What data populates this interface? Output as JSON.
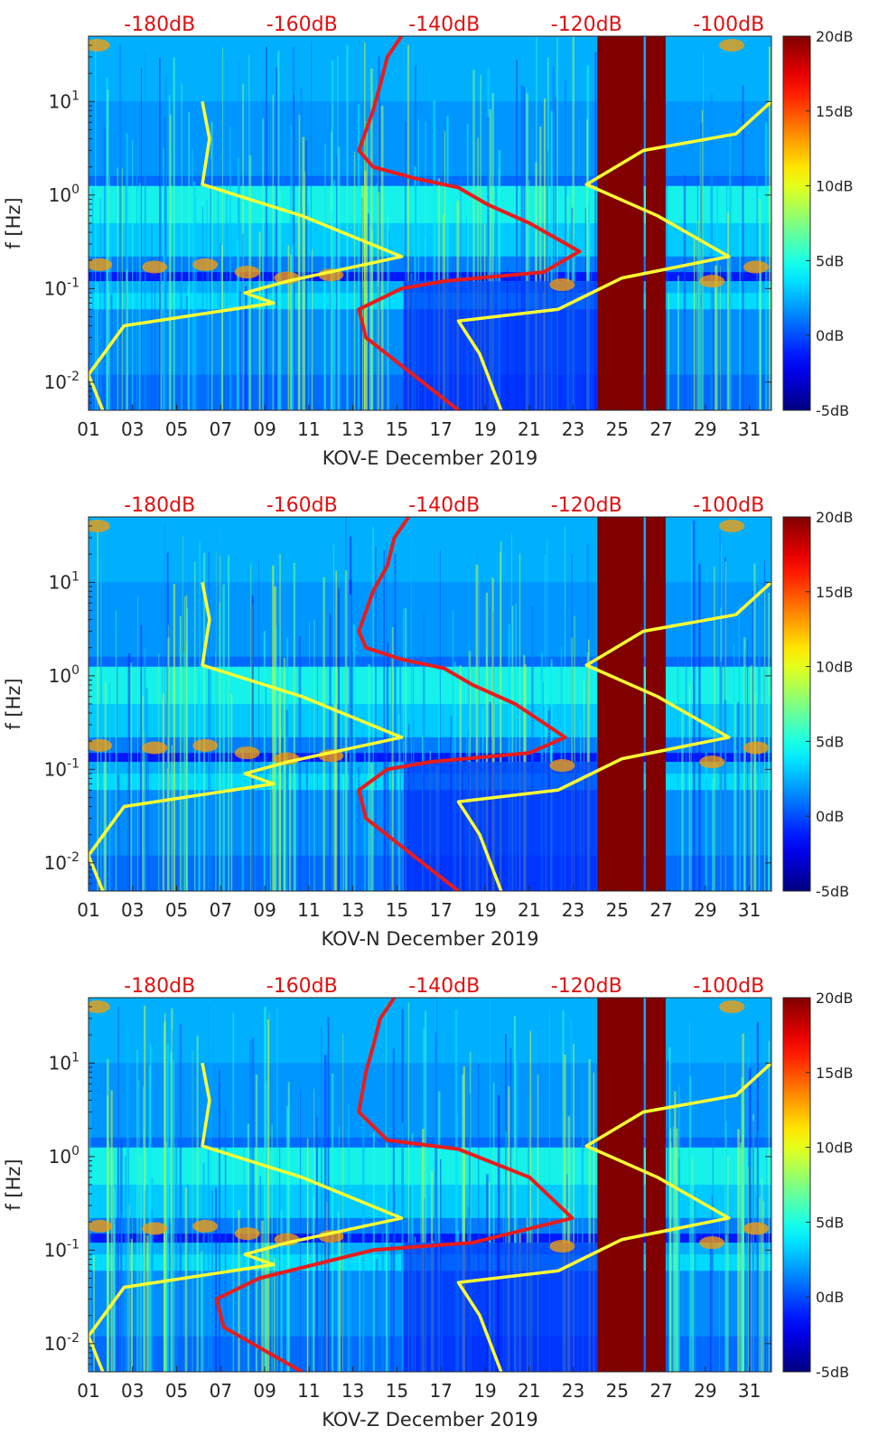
{
  "chart_data": [
    {
      "type": "heatmap",
      "station": "KOV-E",
      "xlabel": "KOV-E December 2019",
      "ylabel": "f [Hz]",
      "x_ticks": [
        "01",
        "03",
        "05",
        "07",
        "09",
        "11",
        "13",
        "15",
        "17",
        "19",
        "21",
        "23",
        "25",
        "27",
        "29",
        "31"
      ],
      "y_ticks": [
        "10-2",
        "10-1",
        "100",
        "101"
      ],
      "y_scale": "log",
      "ylim_hz": [
        0.005,
        50
      ],
      "xlim_day": [
        1,
        32
      ],
      "top_axis_ticks": [
        "-180dB",
        "-160dB",
        "-140dB",
        "-120dB",
        "-100dB"
      ],
      "top_axis_range_db": [
        -190,
        -94
      ],
      "colorbar_ticks": [
        "20dB",
        "15dB",
        "10dB",
        "5dB",
        "0dB",
        "-5dB"
      ],
      "colorbar_range_db": [
        -5,
        20
      ],
      "gap_days": [
        [
          24.1,
          26.2
        ],
        [
          26.3,
          27.2
        ]
      ],
      "curves": [
        {
          "color": "#ffff33",
          "points_db_hz": [
            [
              -174,
              10
            ],
            [
              -173,
              4
            ],
            [
              -174,
              1.3
            ],
            [
              -160,
              0.6
            ],
            [
              -146,
              0.22
            ],
            [
              -162,
              0.12
            ],
            [
              -168,
              0.09
            ],
            [
              -164,
              0.07
            ],
            [
              -185,
              0.04
            ],
            [
              -190,
              0.012
            ],
            [
              -188,
              0.005
            ]
          ]
        },
        {
          "color": "#ffff33",
          "points_db_hz": [
            [
              -94,
              10
            ],
            [
              -99,
              4.5
            ],
            [
              -112,
              3
            ],
            [
              -120,
              1.3
            ],
            [
              -110,
              0.6
            ],
            [
              -100,
              0.22
            ],
            [
              -115,
              0.13
            ],
            [
              -124,
              0.06
            ],
            [
              -138,
              0.045
            ],
            [
              -135,
              0.02
            ],
            [
              -132,
              0.005
            ]
          ]
        },
        {
          "color": "#e81c1c",
          "points_db_hz": [
            [
              -146,
              50
            ],
            [
              -148,
              30
            ],
            [
              -149,
              15
            ],
            [
              -150,
              8
            ],
            [
              -152,
              3
            ],
            [
              -150,
              2
            ],
            [
              -144,
              1.5
            ],
            [
              -138,
              1.2
            ],
            [
              -134,
              0.8
            ],
            [
              -128,
              0.5
            ],
            [
              -121,
              0.25
            ],
            [
              -126,
              0.15
            ],
            [
              -140,
              0.12
            ],
            [
              -146,
              0.1
            ],
            [
              -152,
              0.06
            ],
            [
              -151,
              0.03
            ],
            [
              -146,
              0.015
            ],
            [
              -138,
              0.005
            ]
          ]
        }
      ]
    },
    {
      "type": "heatmap",
      "station": "KOV-N",
      "xlabel": "KOV-N December 2019",
      "ylabel": "f [Hz]",
      "x_ticks": [
        "01",
        "03",
        "05",
        "07",
        "09",
        "11",
        "13",
        "15",
        "17",
        "19",
        "21",
        "23",
        "25",
        "27",
        "29",
        "31"
      ],
      "y_ticks": [
        "10-2",
        "10-1",
        "100",
        "101"
      ],
      "y_scale": "log",
      "ylim_hz": [
        0.005,
        50
      ],
      "xlim_day": [
        1,
        32
      ],
      "top_axis_ticks": [
        "-180dB",
        "-160dB",
        "-140dB",
        "-120dB",
        "-100dB"
      ],
      "top_axis_range_db": [
        -190,
        -94
      ],
      "colorbar_ticks": [
        "20dB",
        "15dB",
        "10dB",
        "5dB",
        "0dB",
        "-5dB"
      ],
      "colorbar_range_db": [
        -5,
        20
      ],
      "gap_days": [
        [
          24.1,
          26.2
        ],
        [
          26.3,
          27.2
        ]
      ],
      "curves": [
        {
          "color": "#ffff33",
          "points_db_hz": [
            [
              -174,
              10
            ],
            [
              -173,
              4
            ],
            [
              -174,
              1.3
            ],
            [
              -160,
              0.6
            ],
            [
              -146,
              0.22
            ],
            [
              -162,
              0.12
            ],
            [
              -168,
              0.09
            ],
            [
              -164,
              0.07
            ],
            [
              -185,
              0.04
            ],
            [
              -190,
              0.012
            ],
            [
              -188,
              0.005
            ]
          ]
        },
        {
          "color": "#ffff33",
          "points_db_hz": [
            [
              -94,
              10
            ],
            [
              -99,
              4.5
            ],
            [
              -112,
              3
            ],
            [
              -120,
              1.3
            ],
            [
              -110,
              0.6
            ],
            [
              -100,
              0.22
            ],
            [
              -115,
              0.13
            ],
            [
              -124,
              0.06
            ],
            [
              -138,
              0.045
            ],
            [
              -135,
              0.02
            ],
            [
              -132,
              0.005
            ]
          ]
        },
        {
          "color": "#e81c1c",
          "points_db_hz": [
            [
              -145,
              50
            ],
            [
              -147,
              30
            ],
            [
              -148,
              15
            ],
            [
              -150,
              8
            ],
            [
              -152,
              3
            ],
            [
              -151,
              2
            ],
            [
              -146,
              1.5
            ],
            [
              -140,
              1.2
            ],
            [
              -136,
              0.8
            ],
            [
              -130,
              0.5
            ],
            [
              -123,
              0.22
            ],
            [
              -128,
              0.15
            ],
            [
              -142,
              0.12
            ],
            [
              -148,
              0.1
            ],
            [
              -152,
              0.06
            ],
            [
              -151,
              0.03
            ],
            [
              -146,
              0.015
            ],
            [
              -138,
              0.005
            ]
          ]
        }
      ]
    },
    {
      "type": "heatmap",
      "station": "KOV-Z",
      "xlabel": "KOV-Z December 2019",
      "ylabel": "f [Hz]",
      "x_ticks": [
        "01",
        "03",
        "05",
        "07",
        "09",
        "11",
        "13",
        "15",
        "17",
        "19",
        "21",
        "23",
        "25",
        "27",
        "29",
        "31"
      ],
      "y_ticks": [
        "10-2",
        "10-1",
        "100",
        "101"
      ],
      "y_scale": "log",
      "ylim_hz": [
        0.005,
        50
      ],
      "xlim_day": [
        1,
        32
      ],
      "top_axis_ticks": [
        "-180dB",
        "-160dB",
        "-140dB",
        "-120dB",
        "-100dB"
      ],
      "top_axis_range_db": [
        -190,
        -94
      ],
      "colorbar_ticks": [
        "20dB",
        "15dB",
        "10dB",
        "5dB",
        "0dB",
        "-5dB"
      ],
      "colorbar_range_db": [
        -5,
        20
      ],
      "gap_days": [
        [
          24.1,
          26.2
        ],
        [
          26.3,
          27.2
        ]
      ],
      "curves": [
        {
          "color": "#ffff33",
          "points_db_hz": [
            [
              -174,
              10
            ],
            [
              -173,
              4
            ],
            [
              -174,
              1.3
            ],
            [
              -160,
              0.6
            ],
            [
              -146,
              0.22
            ],
            [
              -162,
              0.12
            ],
            [
              -168,
              0.09
            ],
            [
              -164,
              0.07
            ],
            [
              -185,
              0.04
            ],
            [
              -190,
              0.012
            ],
            [
              -188,
              0.005
            ]
          ]
        },
        {
          "color": "#ffff33",
          "points_db_hz": [
            [
              -94,
              10
            ],
            [
              -99,
              4.5
            ],
            [
              -112,
              3
            ],
            [
              -120,
              1.3
            ],
            [
              -110,
              0.6
            ],
            [
              -100,
              0.22
            ],
            [
              -115,
              0.13
            ],
            [
              -124,
              0.06
            ],
            [
              -138,
              0.045
            ],
            [
              -135,
              0.02
            ],
            [
              -132,
              0.005
            ]
          ]
        },
        {
          "color": "#e81c1c",
          "points_db_hz": [
            [
              -147,
              50
            ],
            [
              -149,
              30
            ],
            [
              -150,
              15
            ],
            [
              -151,
              8
            ],
            [
              -152,
              3
            ],
            [
              -148,
              1.5
            ],
            [
              -138,
              1.2
            ],
            [
              -128,
              0.6
            ],
            [
              -122,
              0.22
            ],
            [
              -136,
              0.12
            ],
            [
              -150,
              0.1
            ],
            [
              -166,
              0.05
            ],
            [
              -172,
              0.03
            ],
            [
              -171,
              0.015
            ],
            [
              -160,
              0.005
            ]
          ]
        }
      ]
    }
  ]
}
